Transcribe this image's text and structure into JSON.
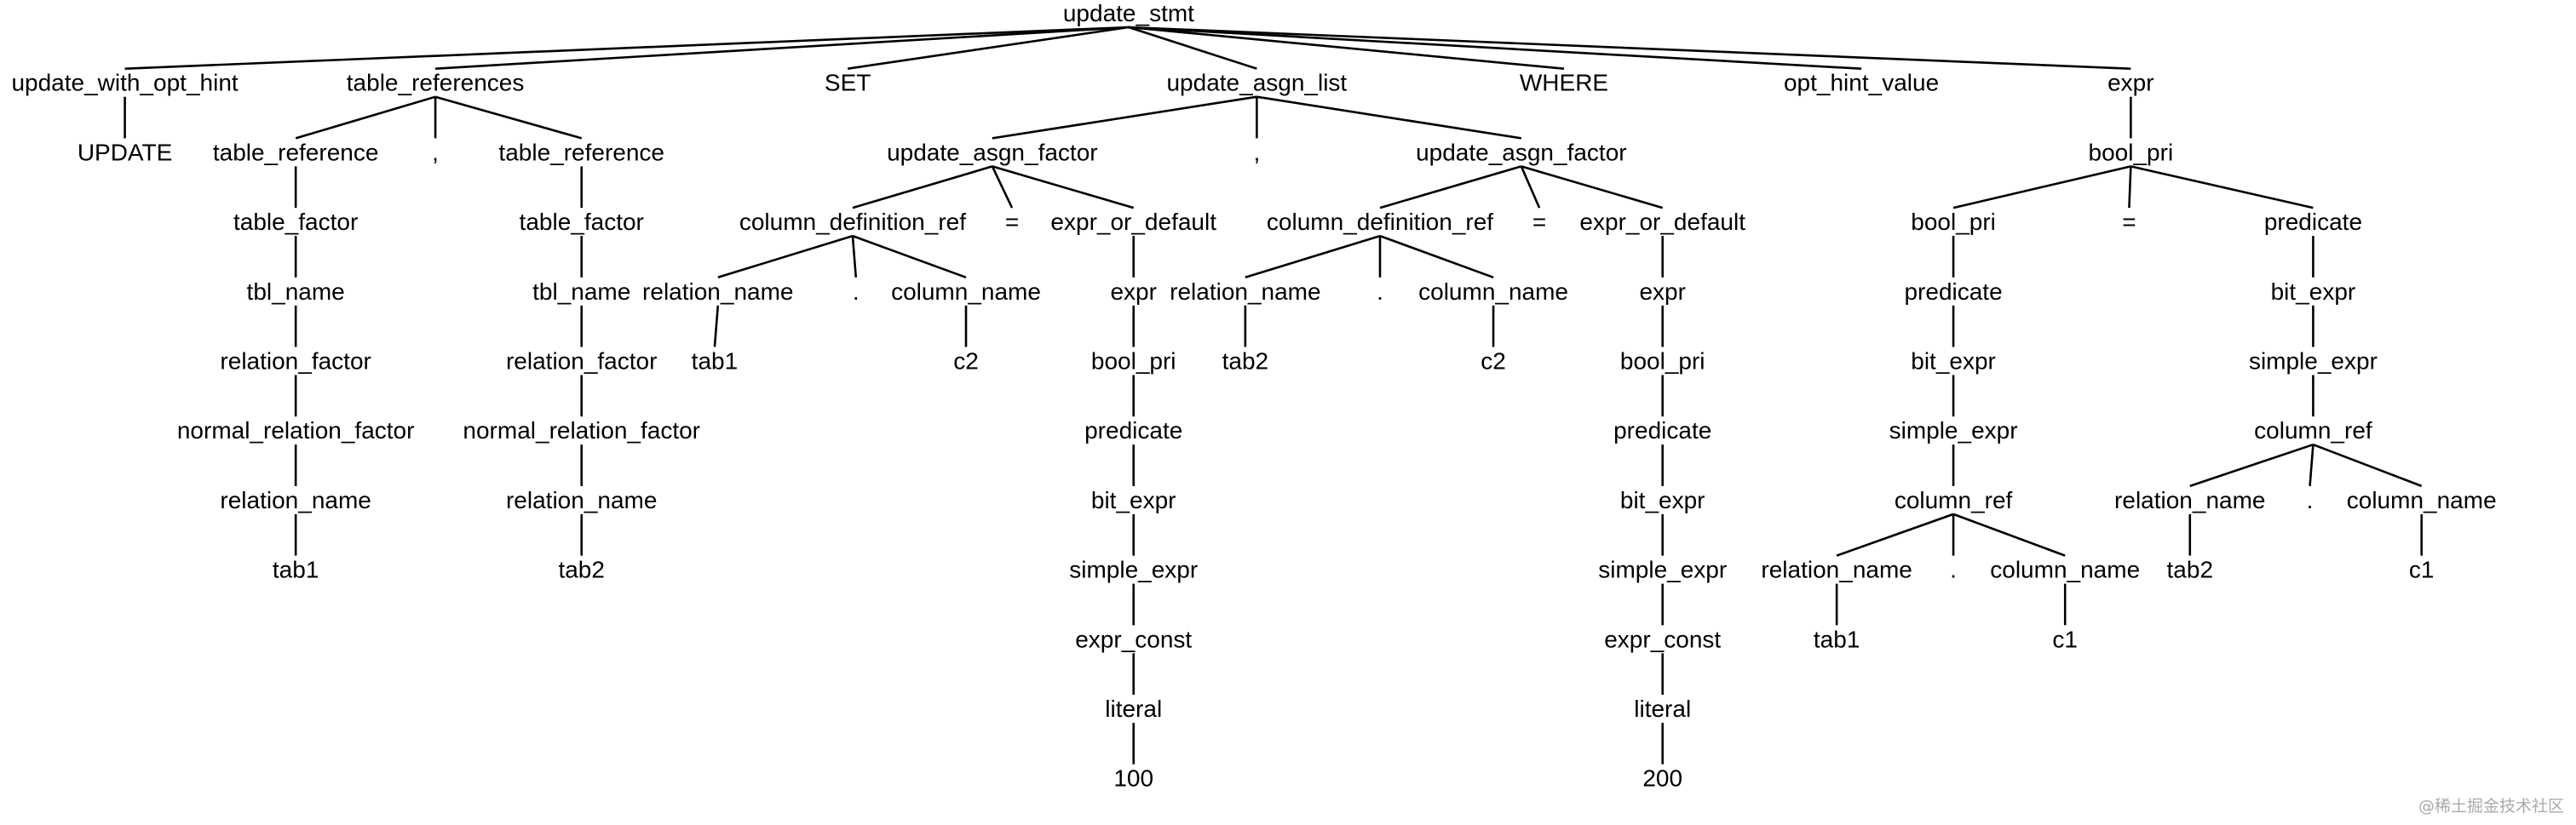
{
  "tree": {
    "label": "update_stmt",
    "children": [
      {
        "label": "update_with_opt_hint",
        "children": [
          {
            "label": "UPDATE"
          }
        ]
      },
      {
        "label": "table_references",
        "children": [
          {
            "label": "table_reference",
            "children": [
              {
                "label": "table_factor",
                "children": [
                  {
                    "label": "tbl_name",
                    "children": [
                      {
                        "label": "relation_factor",
                        "children": [
                          {
                            "label": "normal_relation_factor",
                            "children": [
                              {
                                "label": "relation_name",
                                "children": [
                                  {
                                    "label": "tab1"
                                  }
                                ]
                              }
                            ]
                          }
                        ]
                      }
                    ]
                  }
                ]
              }
            ]
          },
          {
            "label": ","
          },
          {
            "label": "table_reference",
            "children": [
              {
                "label": "table_factor",
                "children": [
                  {
                    "label": "tbl_name",
                    "children": [
                      {
                        "label": "relation_factor",
                        "children": [
                          {
                            "label": "normal_relation_factor",
                            "children": [
                              {
                                "label": "relation_name",
                                "children": [
                                  {
                                    "label": "tab2"
                                  }
                                ]
                              }
                            ]
                          }
                        ]
                      }
                    ]
                  }
                ]
              }
            ]
          }
        ]
      },
      {
        "label": "SET"
      },
      {
        "label": "update_asgn_list",
        "children": [
          {
            "label": "update_asgn_factor",
            "children": [
              {
                "label": "column_definition_ref",
                "children": [
                  {
                    "label": "relation_name",
                    "children": [
                      {
                        "label": "tab1"
                      }
                    ]
                  },
                  {
                    "label": "."
                  },
                  {
                    "label": "column_name",
                    "children": [
                      {
                        "label": "c2"
                      }
                    ]
                  }
                ]
              },
              {
                "label": "="
              },
              {
                "label": "expr_or_default",
                "children": [
                  {
                    "label": "expr",
                    "children": [
                      {
                        "label": "bool_pri",
                        "children": [
                          {
                            "label": "predicate",
                            "children": [
                              {
                                "label": "bit_expr",
                                "children": [
                                  {
                                    "label": "simple_expr",
                                    "children": [
                                      {
                                        "label": "expr_const",
                                        "children": [
                                          {
                                            "label": "literal",
                                            "children": [
                                              {
                                                "label": "100"
                                              }
                                            ]
                                          }
                                        ]
                                      }
                                    ]
                                  }
                                ]
                              }
                            ]
                          }
                        ]
                      }
                    ]
                  }
                ]
              }
            ]
          },
          {
            "label": ","
          },
          {
            "label": "update_asgn_factor",
            "children": [
              {
                "label": "column_definition_ref",
                "children": [
                  {
                    "label": "relation_name",
                    "children": [
                      {
                        "label": "tab2"
                      }
                    ]
                  },
                  {
                    "label": "."
                  },
                  {
                    "label": "column_name",
                    "children": [
                      {
                        "label": "c2"
                      }
                    ]
                  }
                ]
              },
              {
                "label": "="
              },
              {
                "label": "expr_or_default",
                "children": [
                  {
                    "label": "expr",
                    "children": [
                      {
                        "label": "bool_pri",
                        "children": [
                          {
                            "label": "predicate",
                            "children": [
                              {
                                "label": "bit_expr",
                                "children": [
                                  {
                                    "label": "simple_expr",
                                    "children": [
                                      {
                                        "label": "expr_const",
                                        "children": [
                                          {
                                            "label": "literal",
                                            "children": [
                                              {
                                                "label": "200"
                                              }
                                            ]
                                          }
                                        ]
                                      }
                                    ]
                                  }
                                ]
                              }
                            ]
                          }
                        ]
                      }
                    ]
                  }
                ]
              }
            ]
          }
        ]
      },
      {
        "label": "WHERE"
      },
      {
        "label": "opt_hint_value"
      },
      {
        "label": "expr",
        "children": [
          {
            "label": "bool_pri",
            "children": [
              {
                "label": "bool_pri",
                "children": [
                  {
                    "label": "predicate",
                    "children": [
                      {
                        "label": "bit_expr",
                        "children": [
                          {
                            "label": "simple_expr",
                            "children": [
                              {
                                "label": "column_ref",
                                "children": [
                                  {
                                    "label": "relation_name",
                                    "children": [
                                      {
                                        "label": "tab1"
                                      }
                                    ]
                                  },
                                  {
                                    "label": "."
                                  },
                                  {
                                    "label": "column_name",
                                    "children": [
                                      {
                                        "label": "c1"
                                      }
                                    ]
                                  }
                                ]
                              }
                            ]
                          }
                        ]
                      }
                    ]
                  }
                ]
              },
              {
                "label": "="
              },
              {
                "label": "predicate",
                "children": [
                  {
                    "label": "bit_expr",
                    "children": [
                      {
                        "label": "simple_expr",
                        "children": [
                          {
                            "label": "column_ref",
                            "children": [
                              {
                                "label": "relation_name",
                                "children": [
                                  {
                                    "label": "tab2"
                                  }
                                ]
                              },
                              {
                                "label": "."
                              },
                              {
                                "label": "column_name",
                                "children": [
                                  {
                                    "label": "c1"
                                  }
                                ]
                              }
                            ]
                          }
                        ]
                      }
                    ]
                  }
                ]
              }
            ]
          }
        ]
      }
    ]
  },
  "watermark": "@稀土掘金技术社区"
}
